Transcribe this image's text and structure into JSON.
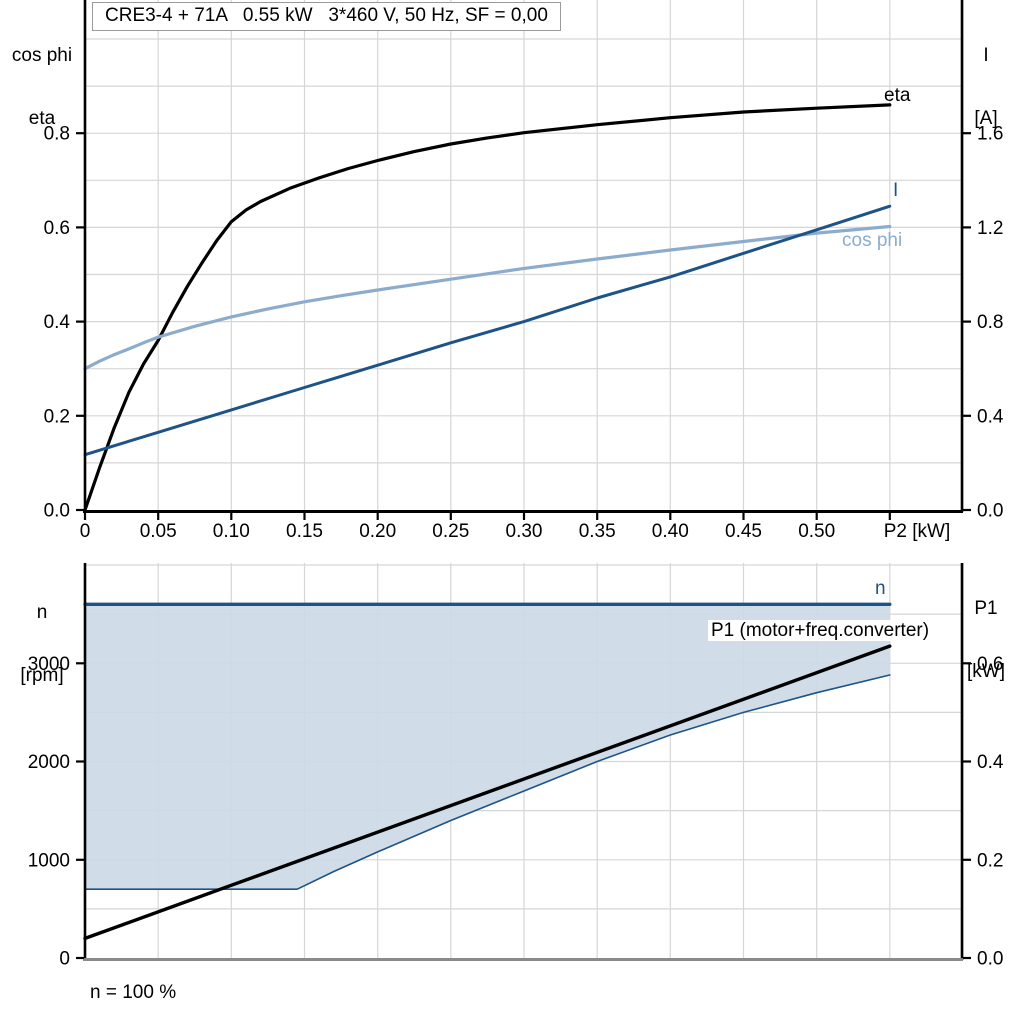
{
  "title": "CRE3-4 + 71A   0.55 kW   3*460 V, 50 Hz, SF = 0,00",
  "footer_note": "n = 100 %",
  "colors": {
    "eta": "#000000",
    "current": "#1d5386",
    "cos_phi": "#8caccd",
    "speed": "#1d5386",
    "p1": "#000000",
    "fill": "#cdd9e7",
    "grid": "#d6d6d6",
    "axis": "#000000",
    "bottom_axis_gray": "#8a8a8a",
    "tick_text": "#000000"
  },
  "top_chart": {
    "y_left_title": [
      "cos phi",
      "eta"
    ],
    "y_right_title": [
      "I",
      "[A]"
    ],
    "x_axis_label": "P2 [kW]",
    "left_tick_labels": [
      "0.0",
      "0.2",
      "0.4",
      "0.6",
      "0.8"
    ],
    "right_tick_labels": [
      "0.0",
      "0.4",
      "0.8",
      "1.2",
      "1.6"
    ],
    "x_tick_labels": [
      "0",
      "0.05",
      "0.10",
      "0.15",
      "0.20",
      "0.25",
      "0.30",
      "0.35",
      "0.40",
      "0.45",
      "0.50",
      ""
    ],
    "curve_labels": {
      "eta": "eta",
      "current": "I",
      "cos_phi": "cos phi"
    }
  },
  "bottom_chart": {
    "y_left_title": [
      "n",
      "[rpm]"
    ],
    "y_right_title": [
      "P1",
      "[kW]"
    ],
    "left_tick_labels": [
      "0",
      "1000",
      "2000",
      "3000"
    ],
    "right_tick_labels": [
      "0.0",
      "0.2",
      "0.4",
      "0.6"
    ],
    "curve_labels": {
      "speed": "n",
      "p1": "P1 (motor+freq.converter)"
    }
  },
  "chart_data": [
    {
      "type": "line",
      "title": "CRE3-4 + 71A 0.55 kW 3*460 V, 50 Hz, SF = 0,00",
      "xlabel": "P2 [kW]",
      "xlim": [
        0,
        0.6
      ],
      "x_ticks": [
        0,
        0.05,
        0.1,
        0.15,
        0.2,
        0.25,
        0.3,
        0.35,
        0.4,
        0.45,
        0.5,
        0.55
      ],
      "grid": true,
      "y_left": {
        "label": "cos phi / eta",
        "lim": [
          0,
          0.96
        ],
        "ticks": [
          0,
          0.2,
          0.4,
          0.6,
          0.8
        ],
        "grid_step": 0.1
      },
      "y_right": {
        "label": "I [A]",
        "lim": [
          0,
          1.92
        ],
        "ticks": [
          0,
          0.4,
          0.8,
          1.2,
          1.6
        ]
      },
      "series": [
        {
          "id": "eta",
          "name": "eta",
          "axis": "left",
          "color_key": "eta",
          "width": 3.2,
          "x": [
            0,
            0.01,
            0.02,
            0.03,
            0.04,
            0.05,
            0.06,
            0.07,
            0.08,
            0.09,
            0.1,
            0.11,
            0.12,
            0.14,
            0.16,
            0.18,
            0.2,
            0.225,
            0.25,
            0.275,
            0.3,
            0.35,
            0.4,
            0.45,
            0.5,
            0.55
          ],
          "y": [
            0,
            0.09,
            0.175,
            0.25,
            0.31,
            0.36,
            0.42,
            0.475,
            0.525,
            0.572,
            0.612,
            0.637,
            0.655,
            0.683,
            0.705,
            0.725,
            0.742,
            0.761,
            0.777,
            0.79,
            0.801,
            0.818,
            0.833,
            0.845,
            0.853,
            0.86
          ]
        },
        {
          "id": "cos-phi",
          "name": "cos phi",
          "axis": "left",
          "color_key": "cos_phi",
          "width": 3.2,
          "x": [
            0,
            0.01,
            0.02,
            0.03,
            0.04,
            0.05,
            0.075,
            0.1,
            0.125,
            0.15,
            0.175,
            0.2,
            0.25,
            0.3,
            0.35,
            0.4,
            0.45,
            0.5,
            0.55
          ],
          "y": [
            0.3,
            0.316,
            0.33,
            0.342,
            0.355,
            0.367,
            0.39,
            0.41,
            0.427,
            0.442,
            0.455,
            0.467,
            0.49,
            0.513,
            0.533,
            0.552,
            0.57,
            0.588,
            0.602
          ]
        },
        {
          "id": "current",
          "name": "I",
          "axis": "right",
          "color_key": "current",
          "width": 3.0,
          "x": [
            0,
            0.05,
            0.1,
            0.15,
            0.2,
            0.25,
            0.3,
            0.35,
            0.4,
            0.45,
            0.5,
            0.55
          ],
          "y": [
            0.235,
            0.33,
            0.425,
            0.52,
            0.615,
            0.71,
            0.8,
            0.9,
            0.99,
            1.09,
            1.19,
            1.29
          ]
        }
      ]
    },
    {
      "type": "line",
      "xlabel": "",
      "xlim": [
        0,
        0.6
      ],
      "grid": true,
      "y_left": {
        "label": "n [rpm]",
        "lim": [
          0,
          4000
        ],
        "ticks": [
          0,
          1000,
          2000,
          3000
        ],
        "grid_step": 500
      },
      "y_right": {
        "label": "P1 [kW]",
        "lim": [
          0,
          0.8
        ],
        "ticks": [
          0,
          0.2,
          0.4,
          0.6
        ]
      },
      "series": [
        {
          "id": "n-min-boundary",
          "name": "n min boundary",
          "axis": "left",
          "color_key": "speed",
          "width": 1.6,
          "x": [
            0,
            0.145,
            0.17,
            0.2,
            0.25,
            0.3,
            0.35,
            0.4,
            0.45,
            0.5,
            0.55
          ],
          "y": [
            700,
            700,
            880,
            1080,
            1400,
            1700,
            2000,
            2270,
            2500,
            2700,
            2880
          ]
        },
        {
          "id": "speed",
          "name": "n",
          "axis": "left",
          "color_key": "speed",
          "width": 3.4,
          "x": [
            0,
            0.55
          ],
          "y": [
            3600,
            3600
          ]
        },
        {
          "id": "p1",
          "name": "P1 (motor+freq.converter)",
          "axis": "right",
          "color_key": "p1",
          "width": 3.4,
          "x": [
            0,
            0.55
          ],
          "y": [
            0.04,
            0.635
          ]
        }
      ],
      "fill_between": {
        "upper": "speed",
        "lower": "n-min-boundary",
        "color_key": "fill"
      },
      "annotation": "n = 100 %"
    }
  ]
}
